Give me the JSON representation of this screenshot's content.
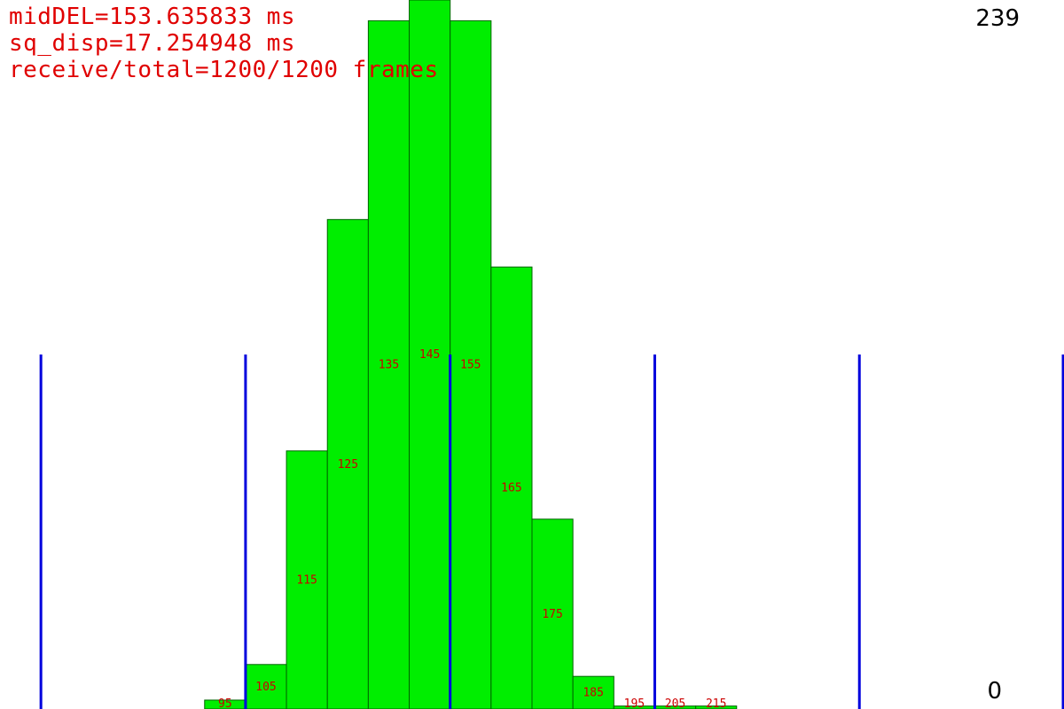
{
  "stats": {
    "mid_del": "midDEL=153.635833 ms",
    "sq_disp": "sq_disp=17.254948 ms",
    "receive_total": "receive/total=1200/1200 frames"
  },
  "colors": {
    "bar_fill": "#00ee00",
    "bar_stroke": "#006400",
    "bin_label": "#cc0000",
    "marker_line": "#0000dd",
    "stats_text": "#e00000"
  },
  "chart_data": {
    "type": "bar",
    "title": "",
    "xlabel": "",
    "ylabel": "",
    "ylim": [
      0,
      239
    ],
    "y_max_label": "239",
    "y_min_label": "0",
    "categories": [
      "95",
      "105",
      "115",
      "125",
      "135",
      "145",
      "155",
      "165",
      "175",
      "185",
      "195",
      "205",
      "215"
    ],
    "values": [
      3,
      15,
      87,
      165,
      232,
      239,
      232,
      149,
      64,
      11,
      1,
      1,
      1
    ],
    "bin_edges_ms": [
      90,
      220
    ],
    "x_range_ms": [
      40,
      300
    ],
    "marker_lines_ms": [
      50,
      100,
      150,
      200,
      250,
      300
    ]
  }
}
